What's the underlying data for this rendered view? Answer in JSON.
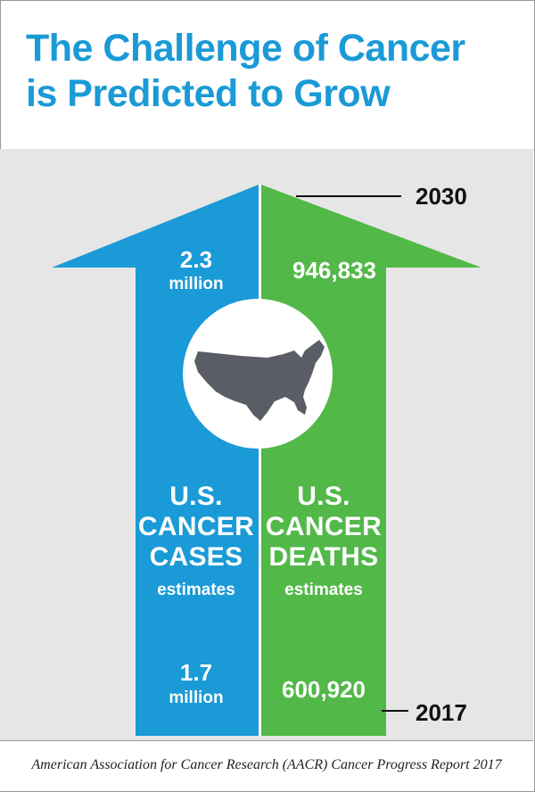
{
  "title": {
    "line1": "The Challenge of Cancer",
    "line2": "is Predicted to Grow"
  },
  "years": {
    "top": "2030",
    "bottom": "2017"
  },
  "cases": {
    "top_value": "2.3",
    "top_unit": "million",
    "heading1": "U.S.",
    "heading2": "CANCER",
    "heading3": "CASES",
    "sub": "estimates",
    "bottom_value": "1.7",
    "bottom_unit": "million"
  },
  "deaths": {
    "top_value": "946,833",
    "heading1": "U.S.",
    "heading2": "CANCER",
    "heading3": "DEATHS",
    "sub": "estimates",
    "bottom_value": "600,920"
  },
  "icons": {
    "map": "us-map-icon"
  },
  "colors": {
    "blue": "#1a9ad6",
    "green": "#52b848",
    "map": "#5a5d66",
    "panel": "#e6e6e7"
  },
  "source": "American Association for Cancer Research (AACR) Cancer Progress Report 2017"
}
